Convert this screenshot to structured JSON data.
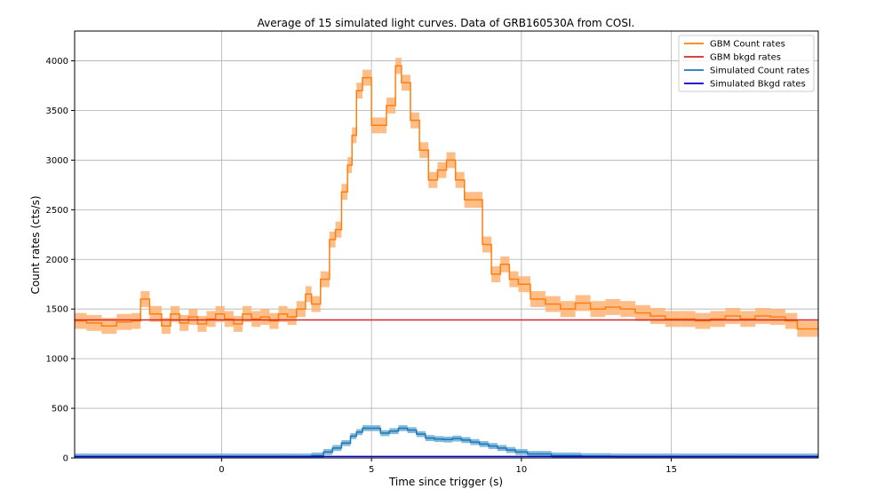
{
  "chart_data": {
    "type": "line",
    "title": "Average of 15 simulated light curves. Data of GRB160530A from COSI.",
    "xlabel": "Time since trigger (s)",
    "ylabel": "Count rates (cts/s)",
    "xlim": [
      -4.9,
      19.9
    ],
    "ylim": [
      0,
      4300
    ],
    "xticks": [
      0,
      5,
      10,
      15
    ],
    "yticks": [
      0,
      500,
      1000,
      1500,
      2000,
      2500,
      3000,
      3500,
      4000
    ],
    "grid": true,
    "legend_position": "top-right",
    "series": [
      {
        "name": "GBM Count rates",
        "color": "#ff7f0e",
        "band_color": "#ffb273",
        "step": true,
        "x": [
          -4.9,
          -4.5,
          -4.0,
          -3.5,
          -3.0,
          -2.7,
          -2.4,
          -2.0,
          -1.7,
          -1.4,
          -1.1,
          -0.8,
          -0.5,
          -0.2,
          0.1,
          0.4,
          0.7,
          1.0,
          1.3,
          1.6,
          1.9,
          2.2,
          2.5,
          2.8,
          3.0,
          3.3,
          3.6,
          3.8,
          4.0,
          4.2,
          4.35,
          4.5,
          4.7,
          5.0,
          5.3,
          5.5,
          5.8,
          6.0,
          6.3,
          6.6,
          6.9,
          7.2,
          7.5,
          7.8,
          8.1,
          8.4,
          8.7,
          9.0,
          9.3,
          9.6,
          9.9,
          10.3,
          10.8,
          11.3,
          11.8,
          12.3,
          12.8,
          13.3,
          13.8,
          14.3,
          14.8,
          15.3,
          15.8,
          16.3,
          16.8,
          17.3,
          17.8,
          18.3,
          18.8,
          19.2,
          19.9
        ],
        "y": [
          1380,
          1360,
          1330,
          1370,
          1380,
          1600,
          1450,
          1330,
          1450,
          1360,
          1420,
          1350,
          1400,
          1450,
          1400,
          1350,
          1450,
          1400,
          1420,
          1380,
          1450,
          1420,
          1500,
          1650,
          1550,
          1800,
          2200,
          2300,
          2680,
          2950,
          3250,
          3700,
          3830,
          3350,
          3350,
          3550,
          3950,
          3780,
          3400,
          3100,
          2800,
          2900,
          3000,
          2800,
          2600,
          2600,
          2150,
          1850,
          1950,
          1800,
          1750,
          1600,
          1550,
          1500,
          1560,
          1500,
          1520,
          1500,
          1460,
          1430,
          1400,
          1400,
          1380,
          1400,
          1430,
          1400,
          1430,
          1420,
          1380,
          1300,
          1380
        ],
        "err": 80
      },
      {
        "name": "GBM bkgd rates",
        "color": "#d62728",
        "x": [
          -4.9,
          19.9
        ],
        "y": [
          1390,
          1390
        ]
      },
      {
        "name": "Simulated Count rates",
        "color": "#1f77b4",
        "band_color": "#6baed6",
        "step": true,
        "x": [
          -4.9,
          2.0,
          3.0,
          3.4,
          3.7,
          4.0,
          4.3,
          4.5,
          4.7,
          5.0,
          5.3,
          5.6,
          5.9,
          6.2,
          6.5,
          6.8,
          7.1,
          7.4,
          7.7,
          8.0,
          8.3,
          8.6,
          8.9,
          9.2,
          9.5,
          9.8,
          10.2,
          11.0,
          12.0,
          13.0,
          15.0,
          17.0,
          19.9
        ],
        "y": [
          15,
          15,
          25,
          60,
          100,
          150,
          220,
          260,
          300,
          300,
          250,
          270,
          300,
          280,
          240,
          200,
          190,
          185,
          195,
          180,
          160,
          140,
          120,
          100,
          80,
          60,
          40,
          25,
          18,
          15,
          15,
          15,
          15
        ],
        "err": 30
      },
      {
        "name": "Simulated Bkgd rates",
        "color": "#0000cc",
        "x": [
          -4.9,
          19.9
        ],
        "y": [
          15,
          15
        ]
      }
    ]
  }
}
